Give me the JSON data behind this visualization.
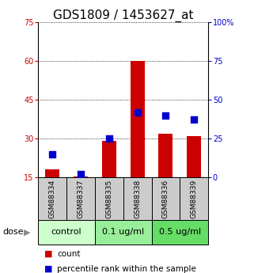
{
  "title": "GDS1809 / 1453627_at",
  "categories": [
    "GSM88334",
    "GSM88337",
    "GSM88335",
    "GSM88338",
    "GSM88336",
    "GSM88339"
  ],
  "red_values": [
    18,
    15.5,
    29,
    60,
    32,
    31
  ],
  "blue_values": [
    15,
    2,
    25,
    42,
    40,
    37
  ],
  "left_ylim": [
    15,
    75
  ],
  "right_ylim": [
    0,
    100
  ],
  "left_yticks": [
    15,
    30,
    45,
    60,
    75
  ],
  "right_yticks": [
    0,
    25,
    50,
    75,
    100
  ],
  "right_yticklabels": [
    "0",
    "25",
    "50",
    "75",
    "100%"
  ],
  "left_ycolor": "#cc0000",
  "right_ycolor": "#0000cc",
  "bar_color": "#cc0000",
  "dot_color": "#0000cc",
  "gsm_bg": "#cccccc",
  "dose_groups": [
    {
      "label": "control",
      "start": 0,
      "end": 2,
      "color": "#ccffcc"
    },
    {
      "label": "0.1 ug/ml",
      "start": 2,
      "end": 4,
      "color": "#99ee99"
    },
    {
      "label": "0.5 ug/ml",
      "start": 4,
      "end": 6,
      "color": "#66dd66"
    }
  ],
  "bar_width": 0.5,
  "dot_size": 28,
  "title_fontsize": 11,
  "tick_fontsize": 7,
  "gsm_fontsize": 6.5,
  "dose_label_fontsize": 8,
  "group_label_fontsize": 8,
  "legend_count": "count",
  "legend_pct": "percentile rank within the sample",
  "legend_fontsize": 7.5,
  "dose_text": "dose"
}
